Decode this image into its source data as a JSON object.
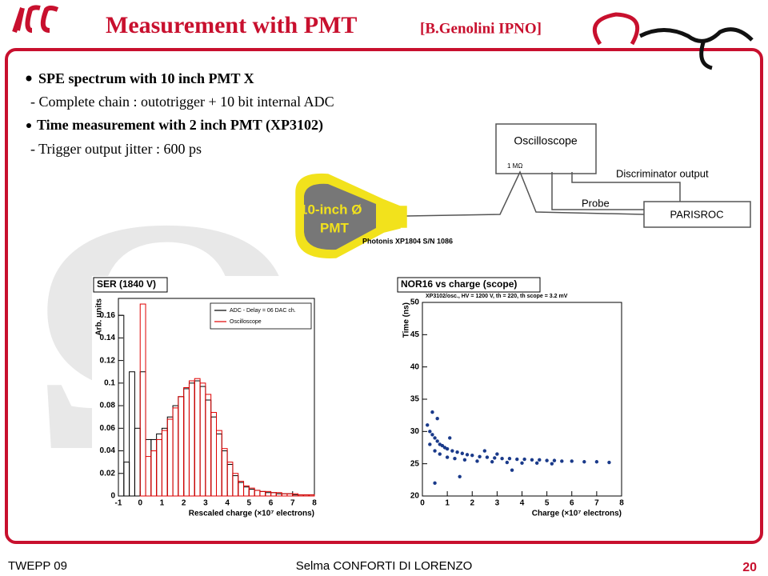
{
  "header": {
    "title": "Measurement with PMT",
    "subtitle": "[B.Genolini IPNO]"
  },
  "bullets": [
    {
      "text": "SPE spectrum with 10 inch  PMT X",
      "sub": "- Complete chain : outotrigger + 10 bit internal ADC"
    },
    {
      "text": "Time measurement with 2 inch PMT (XP3102)",
      "sub": "- Trigger output jitter : 600 ps"
    }
  ],
  "diagram": {
    "scope": "Oscilloscope",
    "impedance": "1 MΩ",
    "discriminator": "Discriminator output",
    "probe": "Probe",
    "chip": "PARISROC",
    "pmt_line1": "10-inch Ø",
    "pmt_line2": "PMT",
    "pmt_model": "Photonis XP1804 S/N 1086"
  },
  "chart_data": [
    {
      "type": "histogram",
      "title": "SER (1840 V)",
      "y_label": "Arb. units",
      "x_label": "Rescaled charge (×10⁷ electrons)",
      "bins": [
        -1,
        -0.75,
        -0.5,
        -0.25,
        0,
        0.25,
        0.5,
        0.75,
        1,
        1.25,
        1.5,
        1.75,
        2,
        2.25,
        2.5,
        2.75,
        3,
        3.25,
        3.5,
        3.75,
        4,
        4.25,
        4.5,
        4.75,
        5,
        5.25,
        5.5,
        5.75,
        6,
        6.25,
        6.5,
        6.75,
        7,
        7.25,
        7.5,
        7.75,
        8
      ],
      "series": [
        {
          "name": "ADC - Delay = 06 DAC ch.",
          "color": "#000000",
          "values": [
            0.16,
            0.03,
            0.11,
            0.06,
            0.11,
            0.05,
            0.05,
            0.055,
            0.06,
            0.07,
            0.08,
            0.088,
            0.095,
            0.1,
            0.102,
            0.097,
            0.085,
            0.07,
            0.055,
            0.04,
            0.028,
            0.018,
            0.012,
            0.008,
            0.006,
            0.005,
            0.004,
            0.003,
            0.003,
            0.002,
            0.002,
            0.002,
            0.001,
            0.001,
            0.001,
            0.001
          ]
        },
        {
          "name": "Oscilloscope",
          "color": "#e00000",
          "values": [
            0,
            0,
            0,
            0,
            0.17,
            0.035,
            0.04,
            0.05,
            0.058,
            0.068,
            0.078,
            0.088,
            0.096,
            0.102,
            0.104,
            0.1,
            0.09,
            0.074,
            0.058,
            0.042,
            0.03,
            0.02,
            0.013,
            0.009,
            0.007,
            0.005,
            0.004,
            0.004,
            0.003,
            0.003,
            0.002,
            0.002,
            0.002,
            0.001,
            0.001,
            0.001
          ]
        }
      ],
      "xlim": [
        -1,
        8
      ],
      "ylim": [
        0,
        0.175
      ],
      "xticks": [
        -1,
        0,
        1,
        2,
        3,
        4,
        5,
        6,
        7,
        8
      ],
      "yticks": [
        0,
        0.02,
        0.04,
        0.06,
        0.08,
        0.1,
        0.12,
        0.14,
        0.16
      ],
      "legend": "upper right"
    },
    {
      "type": "scatter",
      "title": "NOR16 vs charge (scope)",
      "subtitle": "XP3102/osc., HV = 1200 V, th = 220, th scope = 3.2 mV",
      "y_label": "Time (ns)",
      "x_label": "Charge (×10⁷ electrons)",
      "series": [
        {
          "color": "#1a3a8a",
          "x": [
            0.2,
            0.3,
            0.4,
            0.5,
            0.6,
            0.7,
            0.8,
            0.9,
            1.0,
            1.2,
            1.4,
            1.6,
            1.8,
            2.0,
            2.3,
            2.6,
            2.9,
            3.2,
            3.5,
            3.8,
            4.1,
            4.4,
            4.7,
            5.0,
            5.3,
            5.6,
            6.0,
            6.5,
            7.0,
            7.5,
            0.3,
            0.5,
            0.7,
            1.0,
            1.3,
            1.7,
            2.2,
            2.8,
            3.4,
            4.0,
            4.6,
            5.2,
            0.4,
            0.6,
            1.1,
            2.5,
            3.0,
            0.5,
            1.5,
            3.6
          ],
          "values": [
            31,
            30,
            29.5,
            29,
            28.5,
            28,
            27.8,
            27.5,
            27.3,
            27,
            26.8,
            26.6,
            26.4,
            26.3,
            26.1,
            26,
            25.9,
            25.8,
            25.8,
            25.7,
            25.7,
            25.6,
            25.6,
            25.5,
            25.5,
            25.4,
            25.4,
            25.3,
            25.3,
            25.2,
            28,
            27,
            26.5,
            26,
            25.8,
            25.6,
            25.4,
            25.3,
            25.2,
            25.1,
            25.1,
            25,
            33,
            32,
            29,
            27,
            26.5,
            22,
            23,
            24
          ]
        }
      ],
      "xlim": [
        0,
        8
      ],
      "ylim": [
        20,
        50
      ],
      "xticks": [
        0,
        1,
        2,
        3,
        4,
        5,
        6,
        7,
        8
      ],
      "yticks": [
        20,
        25,
        30,
        35,
        40,
        45,
        50
      ]
    }
  ],
  "footer": {
    "left": "TWEPP 09",
    "center": "Selma CONFORTI DI LORENZO",
    "page": "20"
  }
}
